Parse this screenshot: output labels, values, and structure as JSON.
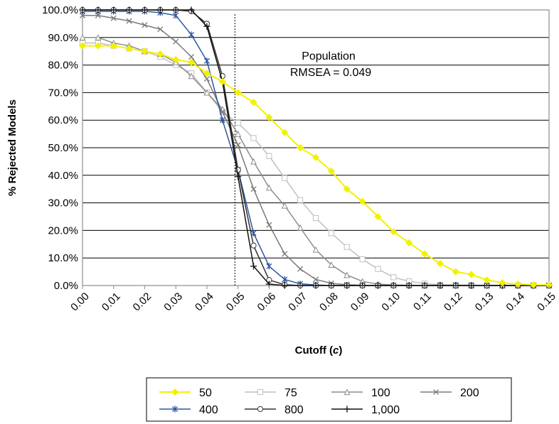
{
  "chart_data": {
    "type": "line",
    "title": "",
    "xlabel_main": "Cutoff (",
    "xlabel_var": "c",
    "xlabel_end": ")",
    "ylabel": "% Rejected Models",
    "x": [
      0.0,
      0.005,
      0.01,
      0.015,
      0.02,
      0.025,
      0.03,
      0.035,
      0.04,
      0.045,
      0.05,
      0.055,
      0.06,
      0.065,
      0.07,
      0.075,
      0.08,
      0.085,
      0.09,
      0.095,
      0.1,
      0.105,
      0.11,
      0.115,
      0.12,
      0.125,
      0.13,
      0.135,
      0.14,
      0.145,
      0.15
    ],
    "xlim": [
      0,
      0.15
    ],
    "ylim": [
      0,
      100
    ],
    "x_ticks": [
      "0.00",
      "0.01",
      "0.02",
      "0.03",
      "0.04",
      "0.05",
      "0.06",
      "0.07",
      "0.08",
      "0.09",
      "0.10",
      "0.11",
      "0.12",
      "0.13",
      "0.14",
      "0.15"
    ],
    "y_ticks": [
      "0.0%",
      "10.0%",
      "20.0%",
      "30.0%",
      "40.0%",
      "50.0%",
      "60.0%",
      "70.0%",
      "80.0%",
      "90.0%",
      "100.0%"
    ],
    "grid": "horizontal",
    "reference_line": {
      "x": 0.049
    },
    "annotation": {
      "line1": "Population",
      "line2": "RMSEA = 0.049"
    },
    "legend_position": "bottom",
    "series": [
      {
        "name": "50",
        "color": "#f2f200",
        "marker": "diamond",
        "values": [
          87,
          87,
          87,
          86,
          85,
          84,
          82,
          81,
          77,
          74,
          70,
          66.5,
          61,
          55.5,
          50,
          46.5,
          41.5,
          35,
          30.5,
          25,
          19.5,
          15.5,
          11.5,
          8,
          5,
          4,
          2,
          1,
          0.5,
          0.3,
          0.2
        ]
      },
      {
        "name": "75",
        "color": "#c0c0c0",
        "marker": "square",
        "values": [
          88,
          88,
          87,
          86,
          85,
          83,
          80,
          77,
          70,
          63,
          59,
          53.5,
          47,
          39,
          31,
          24.5,
          19,
          14,
          9.5,
          6,
          3,
          1.5,
          0.7,
          0.3,
          0.2,
          0.1,
          0,
          0,
          0,
          0,
          0
        ]
      },
      {
        "name": "100",
        "color": "#8c8c8c",
        "marker": "triangle",
        "values": [
          90,
          90,
          88,
          87,
          85,
          84,
          81,
          76,
          70,
          64,
          55,
          45,
          35.5,
          29,
          21,
          13,
          7.5,
          3.8,
          1.5,
          0.5,
          0.2,
          0.1,
          0,
          0,
          0,
          0,
          0,
          0,
          0,
          0,
          0
        ]
      },
      {
        "name": "200",
        "color": "#7a7a7a",
        "marker": "x",
        "values": [
          98,
          98,
          97,
          96,
          94.5,
          93,
          88.5,
          83,
          75,
          63,
          51,
          35,
          22,
          11.5,
          6,
          2.2,
          0.8,
          0.3,
          0.1,
          0,
          0,
          0,
          0,
          0,
          0,
          0,
          0,
          0,
          0,
          0,
          0
        ]
      },
      {
        "name": "400",
        "color": "#2f55a0",
        "marker": "star",
        "values": [
          99.5,
          99.5,
          99.5,
          99.5,
          99.5,
          99,
          98,
          91,
          81.5,
          60,
          42,
          19,
          7,
          2.2,
          0.6,
          0.2,
          0,
          0,
          0,
          0,
          0,
          0,
          0,
          0,
          0,
          0,
          0,
          0,
          0,
          0,
          0
        ]
      },
      {
        "name": "800",
        "color": "#333333",
        "marker": "circle",
        "values": [
          100,
          100,
          100,
          100,
          100,
          100,
          100,
          99.5,
          95,
          76,
          42,
          14.5,
          2,
          0.3,
          0,
          0,
          0,
          0,
          0,
          0,
          0,
          0,
          0,
          0,
          0,
          0,
          0,
          0,
          0,
          0,
          0
        ]
      },
      {
        "name": "1,000",
        "color": "#111111",
        "marker": "plus",
        "values": [
          100,
          100,
          100,
          100,
          100,
          100,
          100,
          100,
          94,
          74,
          39.5,
          7,
          0.5,
          0,
          0,
          0,
          0,
          0,
          0,
          0,
          0,
          0,
          0,
          0,
          0,
          0,
          0,
          0,
          0,
          0,
          0
        ]
      }
    ]
  }
}
